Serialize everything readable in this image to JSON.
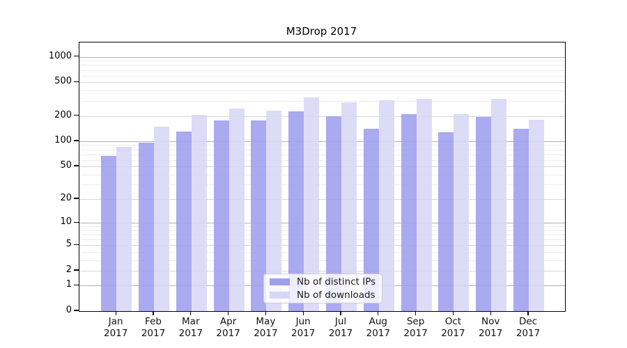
{
  "title": "M3Drop 2017",
  "chart_data": {
    "type": "bar",
    "title": "M3Drop 2017",
    "categories": [
      "Jan",
      "Feb",
      "Mar",
      "Apr",
      "May",
      "Jun",
      "Jul",
      "Aug",
      "Sep",
      "Oct",
      "Nov",
      "Dec"
    ],
    "year_label": "2017",
    "series": [
      {
        "name": "Nb of distinct IPs",
        "color": "#9e9eee",
        "values": [
          67,
          97,
          130,
          176,
          176,
          227,
          199,
          140,
          212,
          128,
          196,
          140
        ]
      },
      {
        "name": "Nb of downloads",
        "color": "#d7d7f6",
        "values": [
          86,
          150,
          208,
          246,
          233,
          332,
          291,
          310,
          318,
          212,
          317,
          182
        ]
      }
    ],
    "yscale": "log1p",
    "yticks": [
      0,
      1,
      2,
      5,
      10,
      20,
      50,
      100,
      200,
      500,
      1000
    ],
    "ylim": [
      0,
      1480
    ],
    "grid": true,
    "legend_position": "lower center",
    "xlabel": "",
    "ylabel": ""
  },
  "colors": {
    "major_grid": "#b0b0b0",
    "mid_grid": "#d6d6d6",
    "minor_grid": "#ededed",
    "axis": "#000000"
  }
}
